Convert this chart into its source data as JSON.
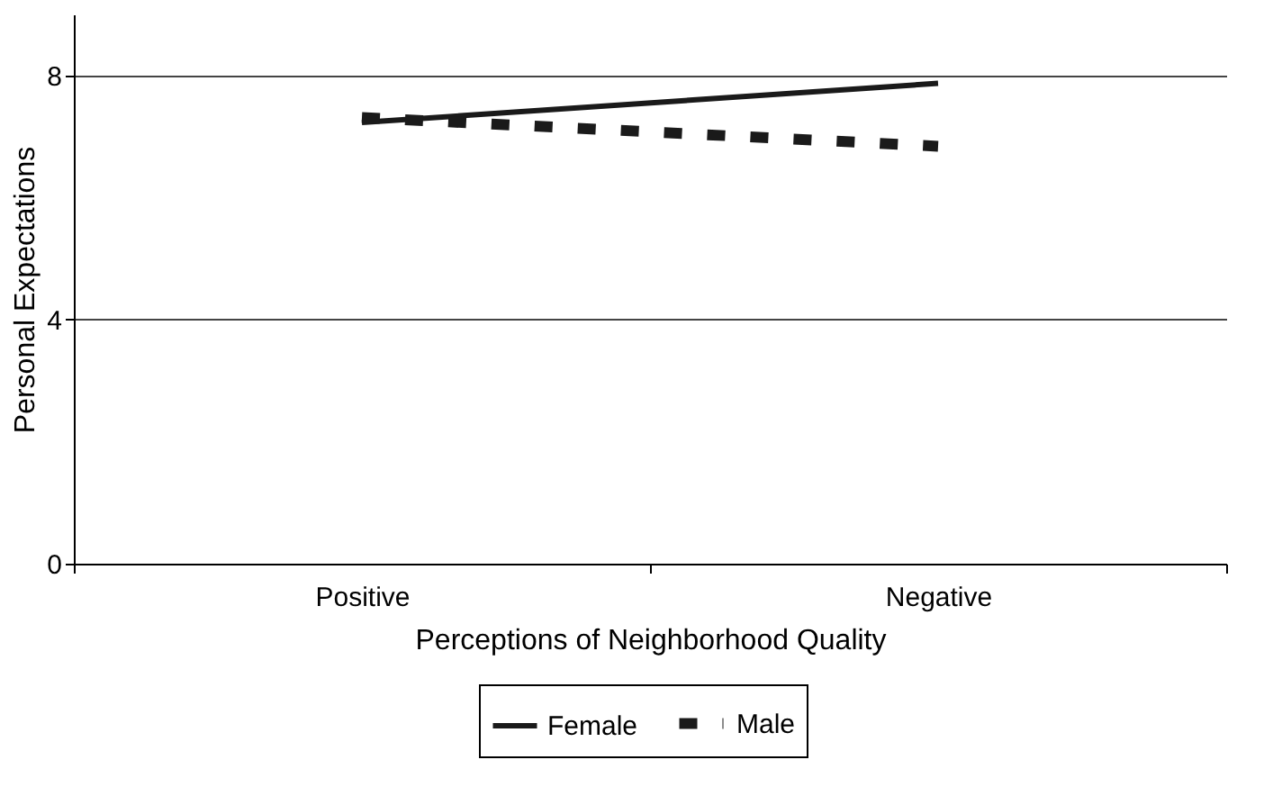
{
  "chart_data": {
    "type": "line",
    "xlabel": "Perceptions of Neighborhood Quality",
    "ylabel": "Personal Expectations",
    "categories": [
      "Positive",
      "Negative"
    ],
    "series": [
      {
        "name": "Female",
        "color": "#1a1a1a",
        "line_style": "solid",
        "values": [
          7.23,
          7.87
        ]
      },
      {
        "name": "Male",
        "color": "#1a1a1a",
        "line_style": "dashed",
        "values": [
          7.31,
          6.84
        ]
      }
    ],
    "ylim": [
      0,
      9
    ],
    "yticks": [
      0,
      4,
      8
    ],
    "grid": "y",
    "legend": "bottom",
    "marker": "none"
  }
}
